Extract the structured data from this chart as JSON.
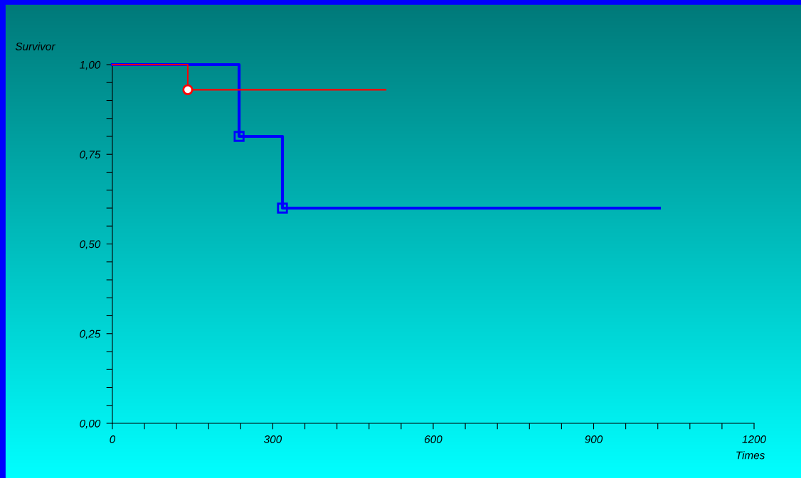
{
  "chart_data": {
    "type": "step",
    "ylabel": "Survivor",
    "xlabel": "Times",
    "series": [
      {
        "color": "#ff0000",
        "x": [
          0,
          141,
          511
        ],
        "values": [
          1.0,
          0.93,
          0.93
        ]
      },
      {
        "color": "#0000ff",
        "x": [
          0,
          237,
          318,
          1023
        ],
        "values": [
          1.0,
          0.8,
          0.6,
          0.6
        ]
      },
      {
        "type": "scatter",
        "color": "#ff0000",
        "marker": "circle",
        "x": [
          141
        ],
        "values": [
          0.93
        ]
      },
      {
        "type": "scatter",
        "color": "#0000ff",
        "marker": "square",
        "x": [
          237,
          318
        ],
        "values": [
          0.8,
          0.6
        ]
      }
    ],
    "xlim": [
      0,
      1200
    ],
    "ylim": [
      0,
      1.0
    ],
    "xticks": [
      0,
      {
        "value": 60,
        "label": null
      },
      {
        "value": 120,
        "label": null
      },
      {
        "value": 180,
        "label": null
      },
      {
        "value": 240,
        "label": null
      },
      300,
      {
        "value": 360,
        "label": null
      },
      {
        "value": 420,
        "label": null
      },
      {
        "value": 480,
        "label": null
      },
      {
        "value": 540,
        "label": null
      },
      600,
      {
        "value": 660,
        "label": null
      },
      {
        "value": 720,
        "label": null
      },
      {
        "value": 780,
        "label": null
      },
      {
        "value": 840,
        "label": null
      },
      900,
      {
        "value": 960,
        "label": null
      },
      {
        "value": 1020,
        "label": null
      },
      {
        "value": 1080,
        "label": null
      },
      {
        "value": 1140,
        "label": null
      },
      1200
    ],
    "yticks": [
      {
        "value": 0,
        "label": "0,00"
      },
      {
        "value": 0.05,
        "label": null
      },
      {
        "value": 0.1,
        "label": null
      },
      {
        "value": 0.15,
        "label": null
      },
      {
        "value": 0.2,
        "label": null
      },
      {
        "value": 0.25,
        "label": "0,25"
      },
      {
        "value": 0.3,
        "label": null
      },
      {
        "value": 0.35,
        "label": null
      },
      {
        "value": 0.4,
        "label": null
      },
      {
        "value": 0.45,
        "label": null
      },
      {
        "value": 0.5,
        "label": "0,50"
      },
      {
        "value": 0.55,
        "label": null
      },
      {
        "value": 0.6,
        "label": null
      },
      {
        "value": 0.65,
        "label": null
      },
      {
        "value": 0.7,
        "label": null
      },
      {
        "value": 0.75,
        "label": "0,75"
      },
      {
        "value": 0.8,
        "label": null
      },
      {
        "value": 0.85,
        "label": null
      },
      {
        "value": 0.9,
        "label": null
      },
      {
        "value": 0.95,
        "label": null
      },
      {
        "value": 1.0,
        "label": "1,00"
      }
    ],
    "grid": false,
    "legend": false
  }
}
